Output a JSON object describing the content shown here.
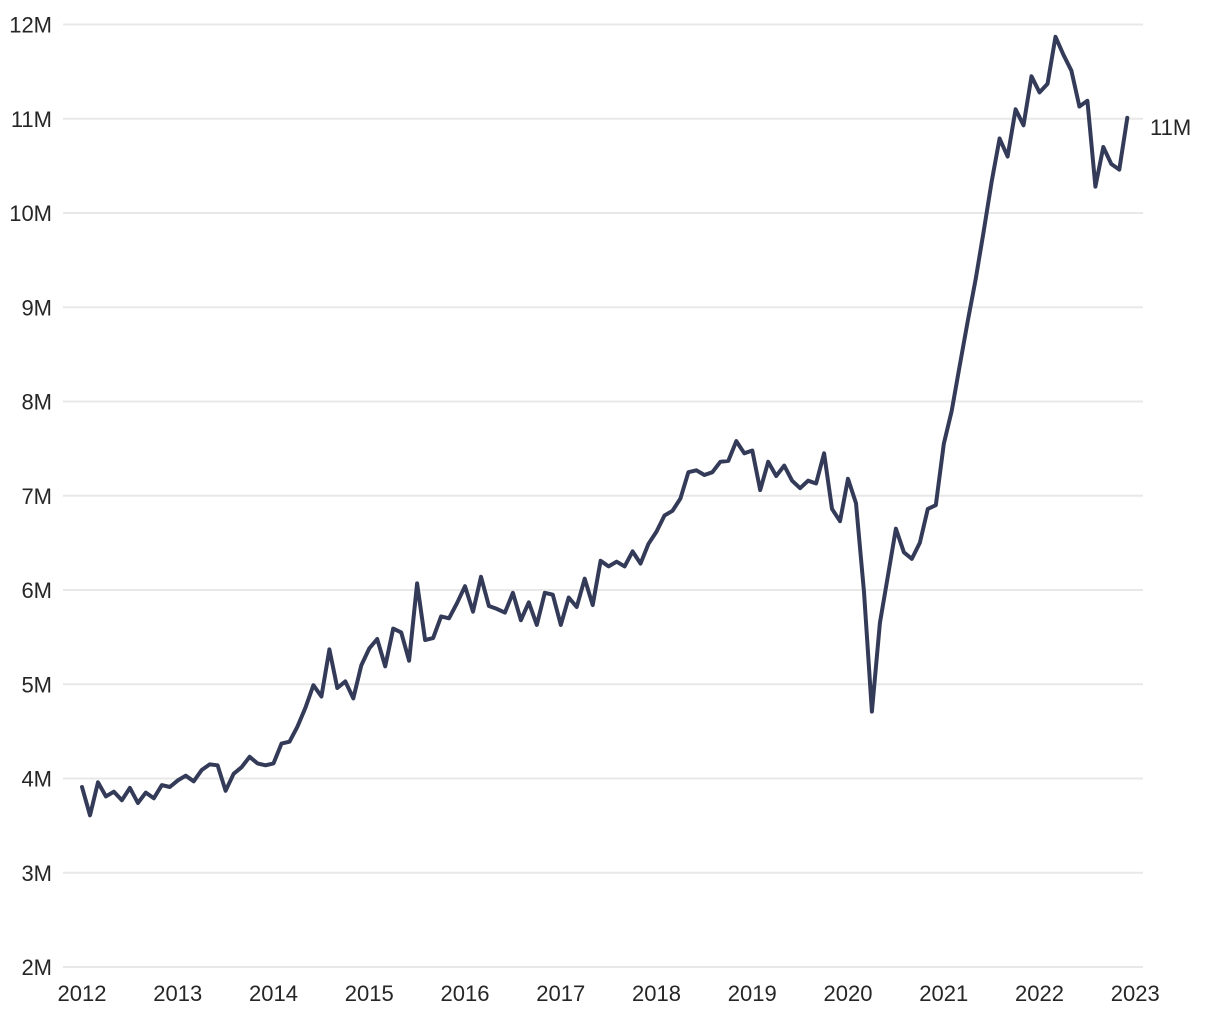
{
  "chart_data": {
    "type": "line",
    "title": "",
    "subtitle": "",
    "unit": "M",
    "frequency": "monthly",
    "x_start": "2012-01",
    "x_end": "2022-12",
    "x_tick_labels": [
      "2012",
      "2013",
      "2014",
      "2015",
      "2016",
      "2017",
      "2018",
      "2019",
      "2020",
      "2021",
      "2022",
      "2023"
    ],
    "y_tick_labels": [
      "2M",
      "3M",
      "4M",
      "5M",
      "6M",
      "7M",
      "8M",
      "9M",
      "10M",
      "11M",
      "12M"
    ],
    "ylim": [
      2,
      12
    ],
    "y_tick_values": [
      2,
      3,
      4,
      5,
      6,
      7,
      8,
      9,
      10,
      11,
      12
    ],
    "grid": "horizontal-only",
    "legend": "none",
    "end_label": "11M",
    "colors": {
      "line": "#343b58",
      "grid": "#e8e8e8",
      "label": "#262626",
      "background": "#ffffff"
    },
    "series": [
      {
        "name": "monthly-values-in-millions",
        "values": [
          3.91,
          3.61,
          3.96,
          3.81,
          3.86,
          3.77,
          3.9,
          3.74,
          3.85,
          3.79,
          3.93,
          3.91,
          3.98,
          4.03,
          3.97,
          4.09,
          4.15,
          4.14,
          3.87,
          4.05,
          4.12,
          4.23,
          4.16,
          4.14,
          4.16,
          4.37,
          4.39,
          4.55,
          4.75,
          4.99,
          4.87,
          5.37,
          4.96,
          5.03,
          4.85,
          5.2,
          5.38,
          5.48,
          5.19,
          5.59,
          5.55,
          5.25,
          6.07,
          5.47,
          5.49,
          5.72,
          5.7,
          5.86,
          6.04,
          5.77,
          6.14,
          5.83,
          5.8,
          5.76,
          5.97,
          5.68,
          5.87,
          5.63,
          5.97,
          5.95,
          5.63,
          5.92,
          5.82,
          6.12,
          5.84,
          6.31,
          6.25,
          6.3,
          6.25,
          6.41,
          6.28,
          6.49,
          6.62,
          6.79,
          6.84,
          6.97,
          7.25,
          7.27,
          7.22,
          7.25,
          7.36,
          7.37,
          7.58,
          7.45,
          7.48,
          7.06,
          7.36,
          7.21,
          7.32,
          7.16,
          7.08,
          7.16,
          7.13,
          7.45,
          6.86,
          6.73,
          7.18,
          6.92,
          5.98,
          4.71,
          5.65,
          6.15,
          6.65,
          6.4,
          6.33,
          6.5,
          6.86,
          6.9,
          7.55,
          7.9,
          8.38,
          8.85,
          9.3,
          9.8,
          10.33,
          10.79,
          10.6,
          11.1,
          10.93,
          11.45,
          11.28,
          11.37,
          11.87,
          11.68,
          11.51,
          11.13,
          11.19,
          10.28,
          10.7,
          10.52,
          10.46,
          11.01
        ]
      }
    ]
  }
}
